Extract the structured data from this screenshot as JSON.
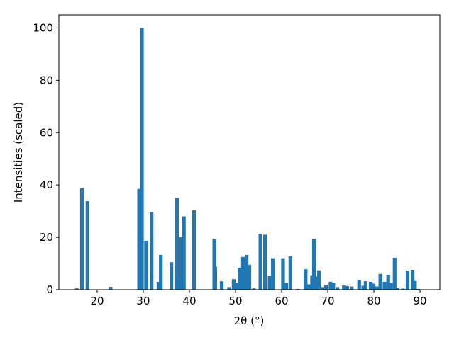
{
  "chart_data": {
    "type": "bar",
    "xlabel": "2θ (°)",
    "ylabel": "Intensities (scaled)",
    "color": "#1f77b4",
    "x": [
      15.6,
      16.7,
      17.9,
      22.9,
      29.1,
      29.7,
      30.6,
      31.8,
      33.3,
      33.8,
      36.1,
      37.3,
      37.8,
      38.2,
      38.8,
      41.0,
      45.4,
      45.6,
      47.0,
      48.6,
      49.6,
      50.3,
      50.9,
      51.6,
      52.4,
      53.0,
      54.0,
      55.4,
      56.4,
      57.4,
      58.1,
      60.3,
      61.0,
      61.9,
      63.5,
      65.2,
      65.9,
      66.6,
      67.0,
      67.6,
      68.1,
      69.0,
      69.6,
      70.6,
      71.2,
      72.1,
      73.5,
      74.2,
      75.2,
      76.8,
      77.7,
      78.2,
      79.3,
      79.9,
      80.7,
      81.4,
      82.3,
      83.1,
      83.7,
      84.5,
      85.1,
      86.3,
      87.3,
      88.4,
      88.9,
      89.6
    ],
    "values": [
      0.5,
      38.7,
      33.8,
      1.1,
      38.5,
      100,
      18.7,
      29.5,
      3.0,
      13.3,
      10.5,
      35,
      4.5,
      20,
      28,
      30.3,
      19.5,
      8.7,
      3.2,
      1,
      4.0,
      2.5,
      8.4,
      12.5,
      13.3,
      9.5,
      0.5,
      21.3,
      21,
      5.3,
      12,
      12,
      2.5,
      12.7,
      0.3,
      7.8,
      2,
      5.5,
      19.5,
      5,
      7.4,
      1,
      1.8,
      3,
      2.5,
      1,
      1.6,
      1.4,
      1.2,
      3.7,
      1.5,
      3.2,
      3,
      2.3,
      1.2,
      6,
      3,
      5.7,
      2.5,
      12.2,
      0.6,
      0.4,
      7.3,
      7.6,
      3.3,
      0.3
    ],
    "xlim": [
      11.7,
      94.3
    ],
    "ylim": [
      0,
      105
    ],
    "xticks": [
      20,
      30,
      40,
      50,
      60,
      70,
      80,
      90
    ],
    "yticks": [
      0,
      20,
      40,
      60,
      80,
      100
    ]
  }
}
